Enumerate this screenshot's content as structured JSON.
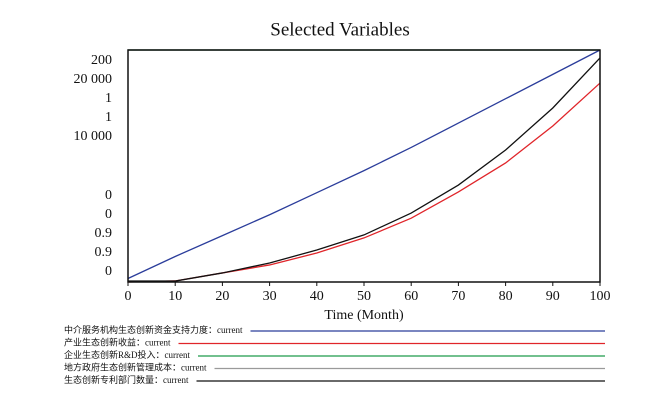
{
  "chart_data": {
    "type": "line",
    "title": "Selected Variables",
    "x_label": "Time (Month)",
    "x": [
      0,
      10,
      20,
      30,
      40,
      50,
      60,
      70,
      80,
      90,
      100
    ],
    "xlim": [
      0,
      100
    ],
    "xticks": [
      0,
      10,
      20,
      30,
      40,
      50,
      60,
      70,
      80,
      90,
      100
    ],
    "series": [
      {
        "name": "中介服务机构生态创新资金支持力度：current",
        "color": "#2b3d9b",
        "ylim": [
          0,
          200
        ],
        "yticks": [
          0,
          200
        ],
        "values": [
          3,
          22,
          40,
          58,
          77,
          96,
          116,
          137,
          158,
          179,
          200
        ]
      },
      {
        "name": "产业生态创新收益：current",
        "color": "#e0252a",
        "ylim": [
          0,
          20000
        ],
        "yticks": [
          0,
          {
            "value": 20000,
            "label": "20 000"
          }
        ],
        "values": [
          0,
          90,
          780,
          1470,
          2500,
          3800,
          5500,
          7760,
          10260,
          13450,
          17150
        ]
      },
      {
        "name": "企业生态创新R&D投入：current",
        "color": "#1f9a4a",
        "ylim": [
          0.9,
          1
        ],
        "yticks": [
          0.9,
          1
        ],
        "values": [
          1,
          1,
          1,
          1,
          1,
          1,
          1,
          1,
          1,
          1,
          1
        ]
      },
      {
        "name": "地方政府生态创新管理成本：current",
        "color": "#9a9a9a",
        "ylim": [
          0.9,
          1
        ],
        "yticks": [
          0.9,
          1
        ],
        "values": [
          1,
          1,
          1,
          1,
          1,
          1,
          1,
          1,
          1,
          1,
          1
        ]
      },
      {
        "name": "生态创新专利部门数量：current",
        "color": "#111111",
        "ylim": [
          0,
          10000
        ],
        "yticks": [
          0,
          {
            "value": 10000,
            "label": "10 000"
          }
        ],
        "values": [
          40,
          40,
          390,
          820,
          1380,
          2030,
          2970,
          4180,
          5690,
          7500,
          9660
        ]
      }
    ]
  }
}
